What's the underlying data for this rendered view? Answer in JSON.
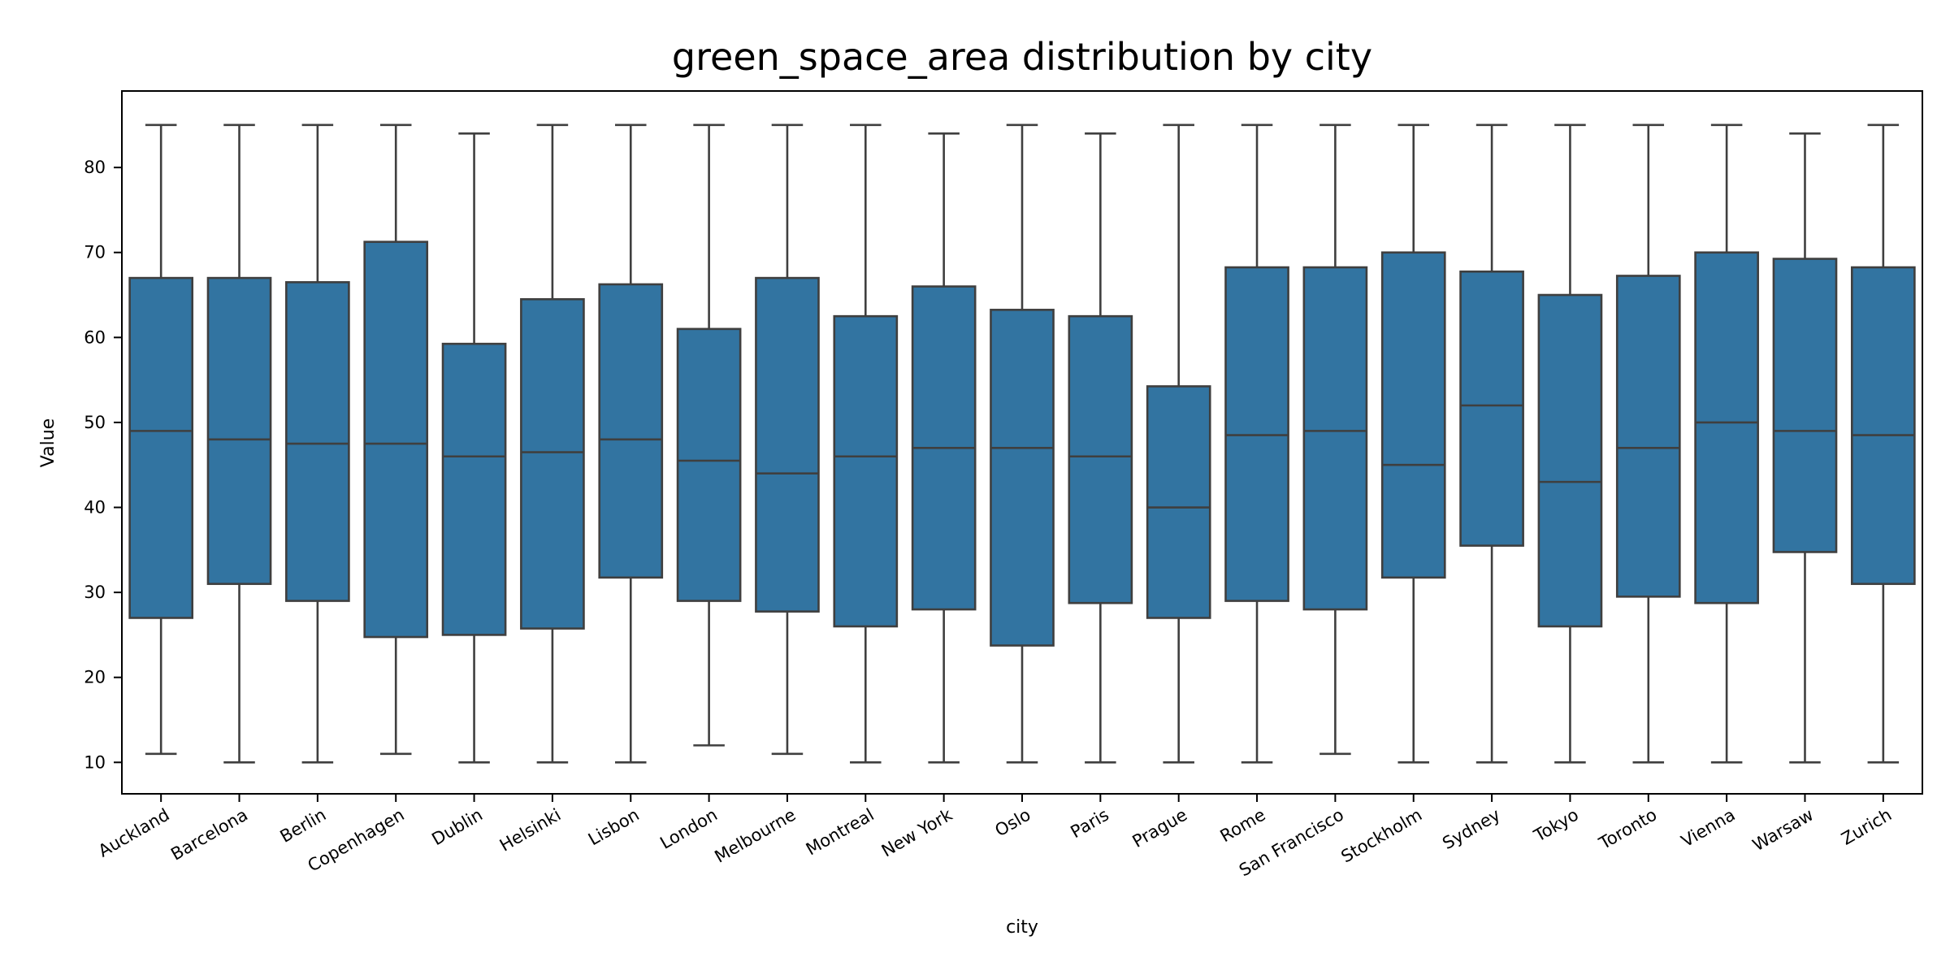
{
  "chart_data": {
    "type": "boxplot",
    "title": "green_space_area distribution by city",
    "xlabel": "city",
    "ylabel": "Value",
    "ylim": [
      6.3,
      89
    ],
    "yticks": [
      10,
      20,
      30,
      40,
      50,
      60,
      70,
      80
    ],
    "grid": false,
    "legend": "none",
    "box_color": "#3274a1",
    "line_color": "#3f3f3f",
    "categories": [
      "Auckland",
      "Barcelona",
      "Berlin",
      "Copenhagen",
      "Dublin",
      "Helsinki",
      "Lisbon",
      "London",
      "Melbourne",
      "Montreal",
      "New York",
      "Oslo",
      "Paris",
      "Prague",
      "Rome",
      "San Francisco",
      "Stockholm",
      "Sydney",
      "Tokyo",
      "Toronto",
      "Vienna",
      "Warsaw",
      "Zurich"
    ],
    "boxes": [
      {
        "whislo": 11,
        "q1": 27.0,
        "med": 49.0,
        "q3": 67.0,
        "whishi": 85
      },
      {
        "whislo": 10,
        "q1": 31.0,
        "med": 48.0,
        "q3": 67.0,
        "whishi": 85
      },
      {
        "whislo": 10,
        "q1": 29.0,
        "med": 47.5,
        "q3": 66.5,
        "whishi": 85
      },
      {
        "whislo": 11,
        "q1": 24.75,
        "med": 47.5,
        "q3": 71.25,
        "whishi": 85
      },
      {
        "whislo": 10,
        "q1": 25.0,
        "med": 46.0,
        "q3": 59.25,
        "whishi": 84
      },
      {
        "whislo": 10,
        "q1": 25.75,
        "med": 46.5,
        "q3": 64.5,
        "whishi": 85
      },
      {
        "whislo": 10,
        "q1": 31.75,
        "med": 48.0,
        "q3": 66.25,
        "whishi": 85
      },
      {
        "whislo": 12,
        "q1": 29.0,
        "med": 45.5,
        "q3": 61.0,
        "whishi": 85
      },
      {
        "whislo": 11,
        "q1": 27.75,
        "med": 44.0,
        "q3": 67.0,
        "whishi": 85
      },
      {
        "whislo": 10,
        "q1": 26.0,
        "med": 46.0,
        "q3": 62.5,
        "whishi": 85
      },
      {
        "whislo": 10,
        "q1": 28.0,
        "med": 47.0,
        "q3": 66.0,
        "whishi": 84
      },
      {
        "whislo": 10,
        "q1": 23.75,
        "med": 47.0,
        "q3": 63.25,
        "whishi": 85
      },
      {
        "whislo": 10,
        "q1": 28.75,
        "med": 46.0,
        "q3": 62.5,
        "whishi": 84
      },
      {
        "whislo": 10,
        "q1": 27.0,
        "med": 40.0,
        "q3": 54.25,
        "whishi": 85
      },
      {
        "whislo": 10,
        "q1": 29.0,
        "med": 48.5,
        "q3": 68.25,
        "whishi": 85
      },
      {
        "whislo": 11,
        "q1": 28.0,
        "med": 49.0,
        "q3": 68.25,
        "whishi": 85
      },
      {
        "whislo": 10,
        "q1": 31.75,
        "med": 45.0,
        "q3": 70.0,
        "whishi": 85
      },
      {
        "whislo": 10,
        "q1": 35.5,
        "med": 52.0,
        "q3": 67.75,
        "whishi": 85
      },
      {
        "whislo": 10,
        "q1": 26.0,
        "med": 43.0,
        "q3": 65.0,
        "whishi": 85
      },
      {
        "whislo": 10,
        "q1": 29.5,
        "med": 47.0,
        "q3": 67.25,
        "whishi": 85
      },
      {
        "whislo": 10,
        "q1": 28.75,
        "med": 50.0,
        "q3": 70.0,
        "whishi": 85
      },
      {
        "whislo": 10,
        "q1": 34.75,
        "med": 49.0,
        "q3": 69.25,
        "whishi": 84
      },
      {
        "whislo": 10,
        "q1": 31.0,
        "med": 48.5,
        "q3": 68.25,
        "whishi": 85
      }
    ]
  }
}
